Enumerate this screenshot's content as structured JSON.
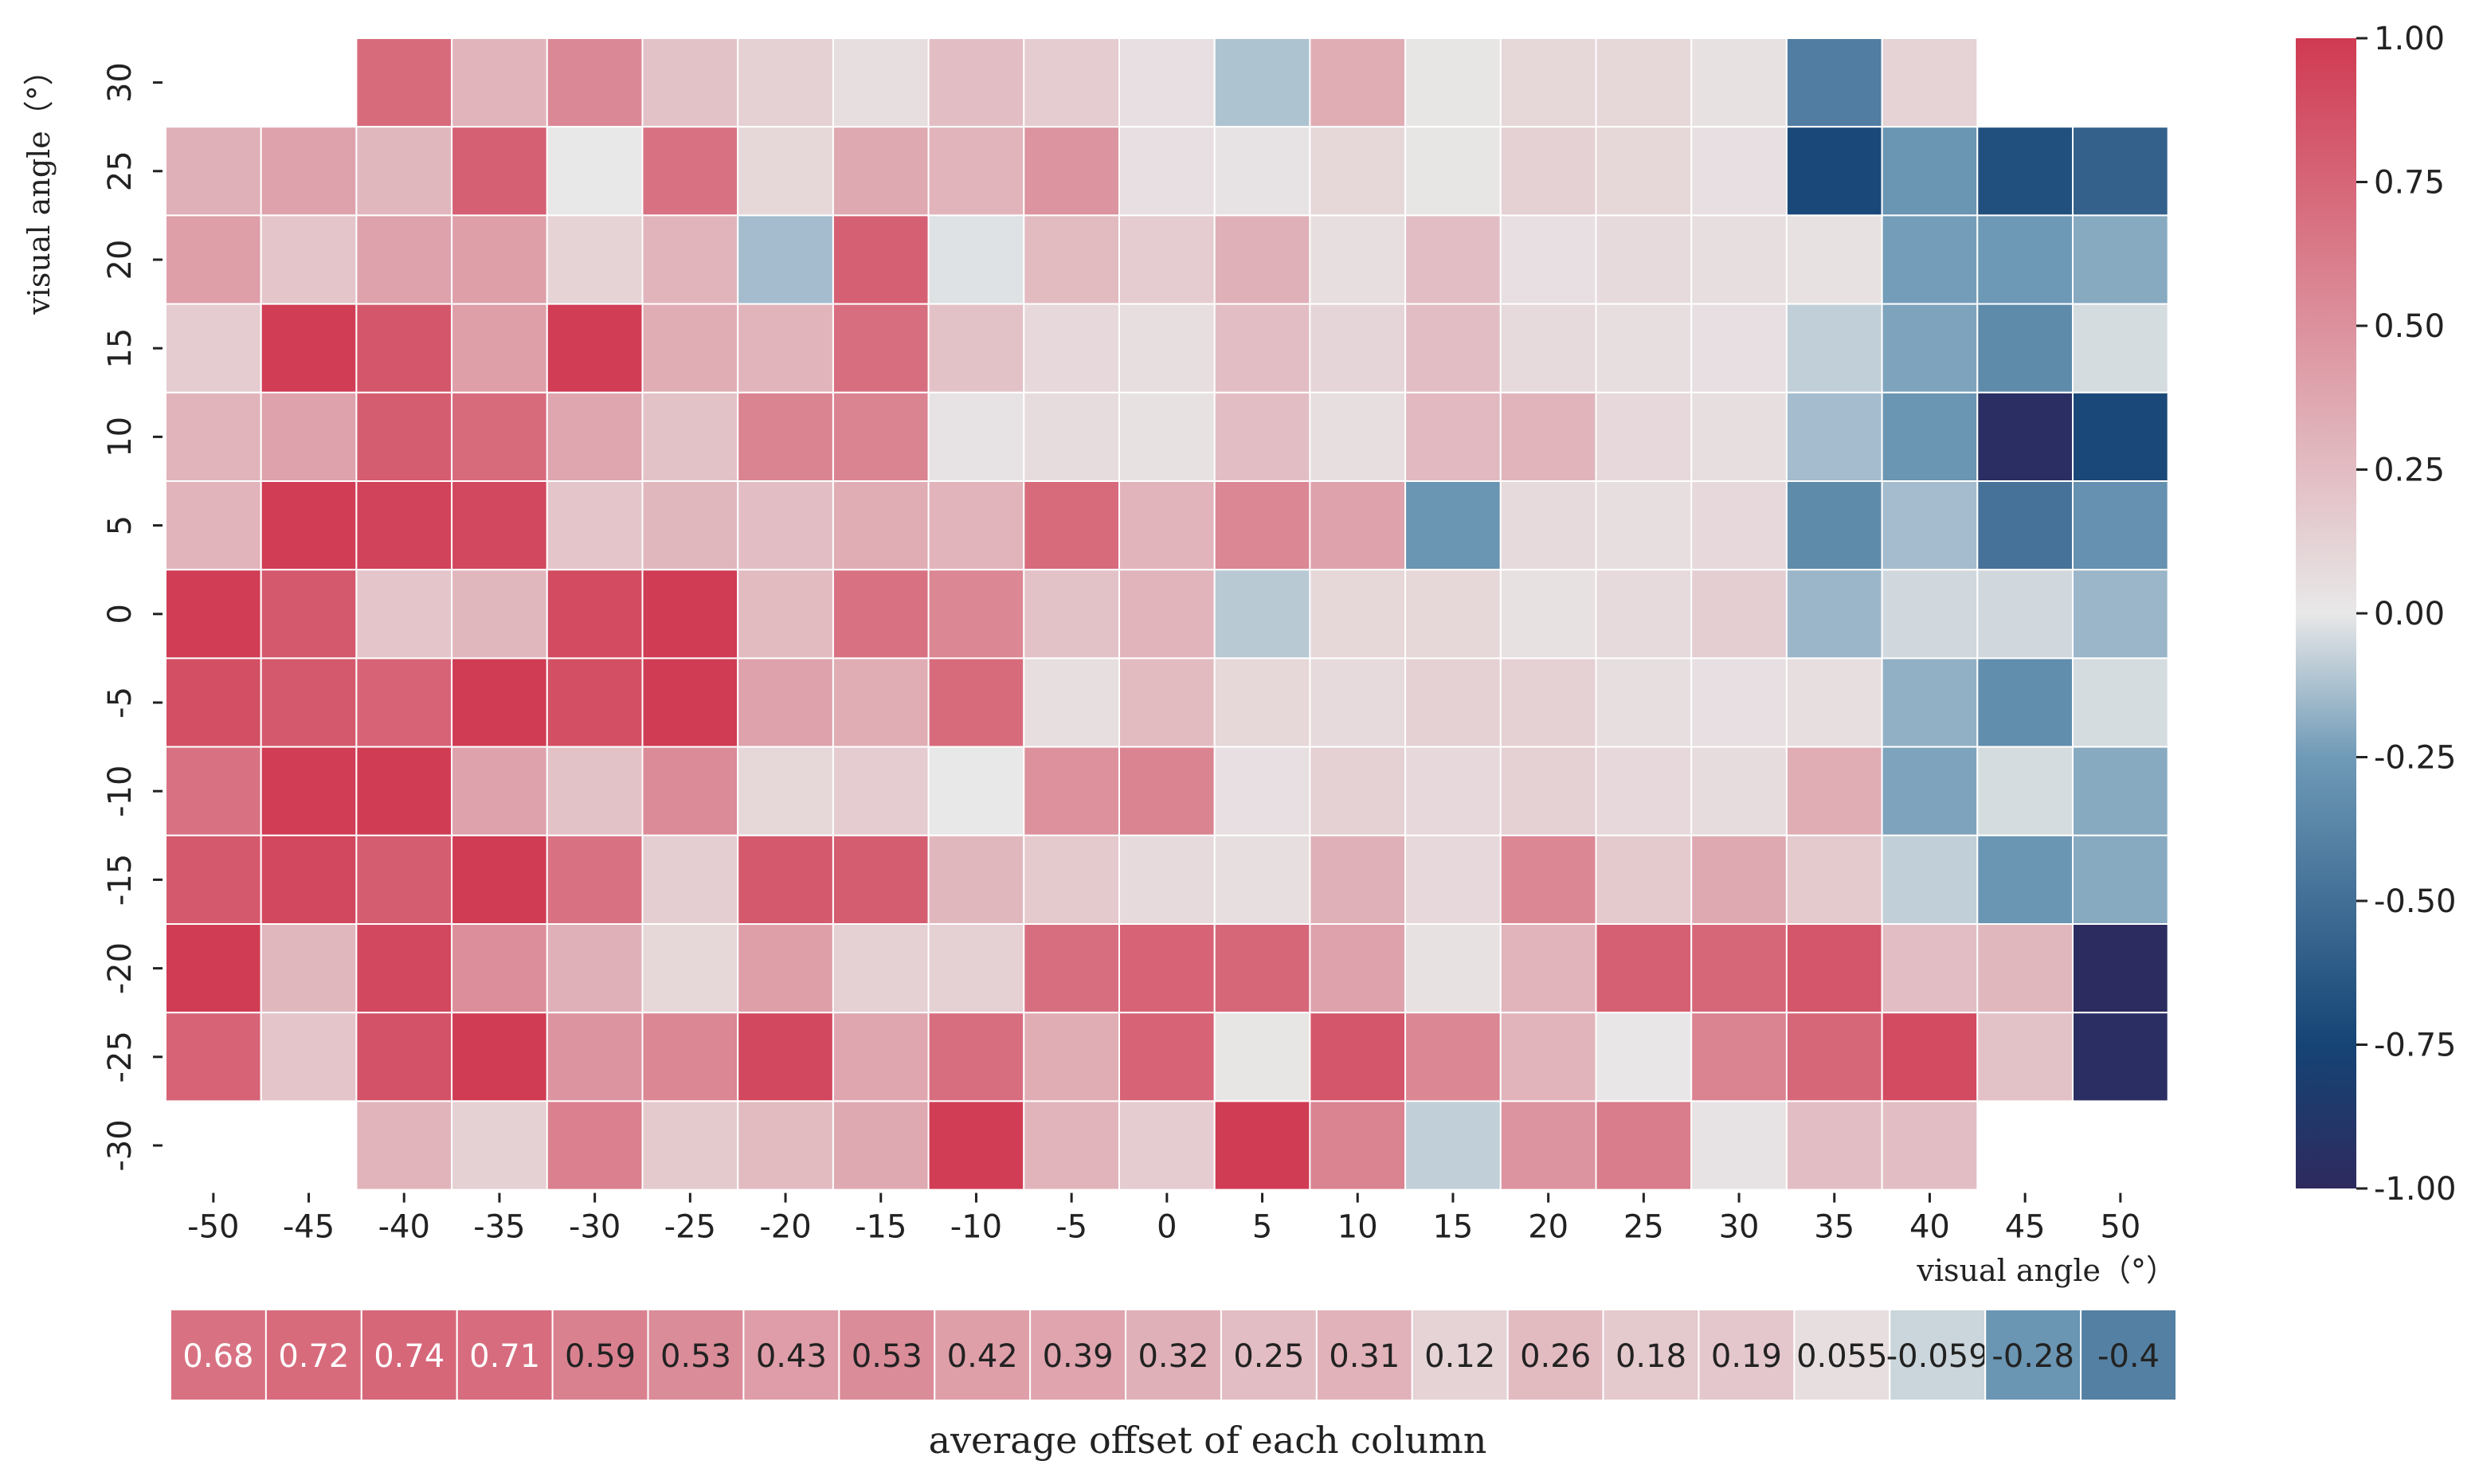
{
  "chart_data": {
    "type": "heatmap",
    "x_categories": [
      -50,
      -45,
      -40,
      -35,
      -30,
      -25,
      -20,
      -15,
      -10,
      -5,
      0,
      5,
      10,
      15,
      20,
      25,
      30,
      35,
      40,
      45,
      50
    ],
    "y_categories": [
      30,
      25,
      20,
      15,
      10,
      5,
      0,
      -5,
      -10,
      -15,
      -20,
      -25,
      -30
    ],
    "values": [
      [
        null,
        null,
        0.72,
        0.3,
        0.55,
        0.22,
        0.14,
        0.06,
        0.24,
        0.16,
        0.05,
        -0.12,
        0.34,
        0.02,
        0.1,
        0.1,
        0.04,
        -0.42,
        0.12,
        null,
        null
      ],
      [
        0.32,
        0.4,
        0.28,
        0.78,
        0.0,
        0.68,
        0.1,
        0.36,
        0.3,
        0.48,
        0.05,
        0.03,
        0.1,
        0.02,
        0.14,
        0.1,
        0.05,
        -0.72,
        -0.28,
        -0.68,
        -0.58
      ],
      [
        0.42,
        0.2,
        0.4,
        0.42,
        0.12,
        0.3,
        -0.14,
        0.78,
        -0.02,
        0.26,
        0.16,
        0.32,
        0.06,
        0.24,
        0.05,
        0.08,
        0.06,
        0.04,
        -0.24,
        -0.26,
        -0.2
      ],
      [
        0.16,
        0.98,
        0.84,
        0.42,
        0.98,
        0.34,
        0.3,
        0.7,
        0.22,
        0.09,
        0.06,
        0.24,
        0.11,
        0.24,
        0.08,
        0.06,
        0.05,
        -0.08,
        -0.22,
        -0.34,
        -0.04
      ],
      [
        0.3,
        0.4,
        0.8,
        0.72,
        0.38,
        0.22,
        0.58,
        0.58,
        0.03,
        0.07,
        0.04,
        0.24,
        0.06,
        0.27,
        0.3,
        0.09,
        0.06,
        -0.14,
        -0.28,
        -0.96,
        -0.72
      ],
      [
        0.3,
        0.98,
        0.95,
        0.92,
        0.2,
        0.28,
        0.25,
        0.34,
        0.3,
        0.72,
        0.3,
        0.56,
        0.4,
        -0.28,
        0.08,
        0.06,
        0.09,
        -0.34,
        -0.14,
        -0.48,
        -0.3
      ],
      [
        0.98,
        0.82,
        0.2,
        0.28,
        0.9,
        0.99,
        0.26,
        0.68,
        0.56,
        0.22,
        0.3,
        -0.1,
        0.1,
        0.1,
        0.04,
        0.08,
        0.15,
        -0.16,
        -0.05,
        -0.05,
        -0.16
      ],
      [
        0.88,
        0.82,
        0.76,
        0.99,
        0.88,
        0.99,
        0.4,
        0.34,
        0.72,
        0.06,
        0.26,
        0.1,
        0.08,
        0.14,
        0.14,
        0.06,
        0.05,
        0.06,
        -0.18,
        -0.32,
        -0.04
      ],
      [
        0.68,
        0.98,
        0.99,
        0.4,
        0.22,
        0.54,
        0.1,
        0.16,
        0.0,
        0.5,
        0.58,
        0.05,
        0.14,
        0.09,
        0.14,
        0.09,
        0.07,
        0.34,
        -0.22,
        -0.04,
        -0.2
      ],
      [
        0.82,
        0.92,
        0.8,
        0.99,
        0.68,
        0.15,
        0.82,
        0.8,
        0.28,
        0.18,
        0.08,
        0.06,
        0.32,
        0.09,
        0.56,
        0.18,
        0.36,
        0.18,
        -0.08,
        -0.28,
        -0.2
      ],
      [
        0.99,
        0.28,
        0.92,
        0.52,
        0.32,
        0.1,
        0.42,
        0.14,
        0.14,
        0.7,
        0.76,
        0.74,
        0.4,
        0.04,
        0.3,
        0.78,
        0.74,
        0.84,
        0.24,
        0.28,
        -0.98
      ],
      [
        0.76,
        0.2,
        0.86,
        0.99,
        0.48,
        0.56,
        0.92,
        0.38,
        0.7,
        0.34,
        0.76,
        0.02,
        0.84,
        0.56,
        0.3,
        0.01,
        0.58,
        0.74,
        0.9,
        0.22,
        -0.96
      ],
      [
        null,
        null,
        0.3,
        0.14,
        0.6,
        0.18,
        0.26,
        0.36,
        0.98,
        0.3,
        0.16,
        0.99,
        0.58,
        -0.08,
        0.48,
        0.62,
        0.03,
        0.24,
        0.24,
        null,
        null
      ]
    ],
    "xlabel": "visual angle（°）",
    "ylabel": "visual angle（°）",
    "colorbar": {
      "min": -1.0,
      "max": 1.0,
      "ticks": [
        "1.00",
        "0.75",
        "0.50",
        "0.25",
        "0.00",
        "-0.25",
        "-0.50",
        "-0.75",
        "-1.00"
      ],
      "colors": [
        "#2e2a5e",
        "#154475",
        "#6f9ab7",
        "#e8e8e8",
        "#d03a52"
      ]
    },
    "averages": {
      "label": "average offset of each column",
      "values": [
        0.68,
        0.72,
        0.74,
        0.71,
        0.59,
        0.53,
        0.43,
        0.53,
        0.42,
        0.39,
        0.32,
        0.25,
        0.31,
        0.12,
        0.26,
        0.18,
        0.19,
        0.055,
        -0.059,
        -0.28,
        -0.4
      ],
      "labels": [
        "0.68",
        "0.72",
        "0.74",
        "0.71",
        "0.59",
        "0.53",
        "0.43",
        "0.53",
        "0.42",
        "0.39",
        "0.32",
        "0.25",
        "0.31",
        "0.12",
        "0.26",
        "0.18",
        "0.19",
        "0.055",
        "-0.059",
        "-0.28",
        "-0.4"
      ]
    }
  }
}
